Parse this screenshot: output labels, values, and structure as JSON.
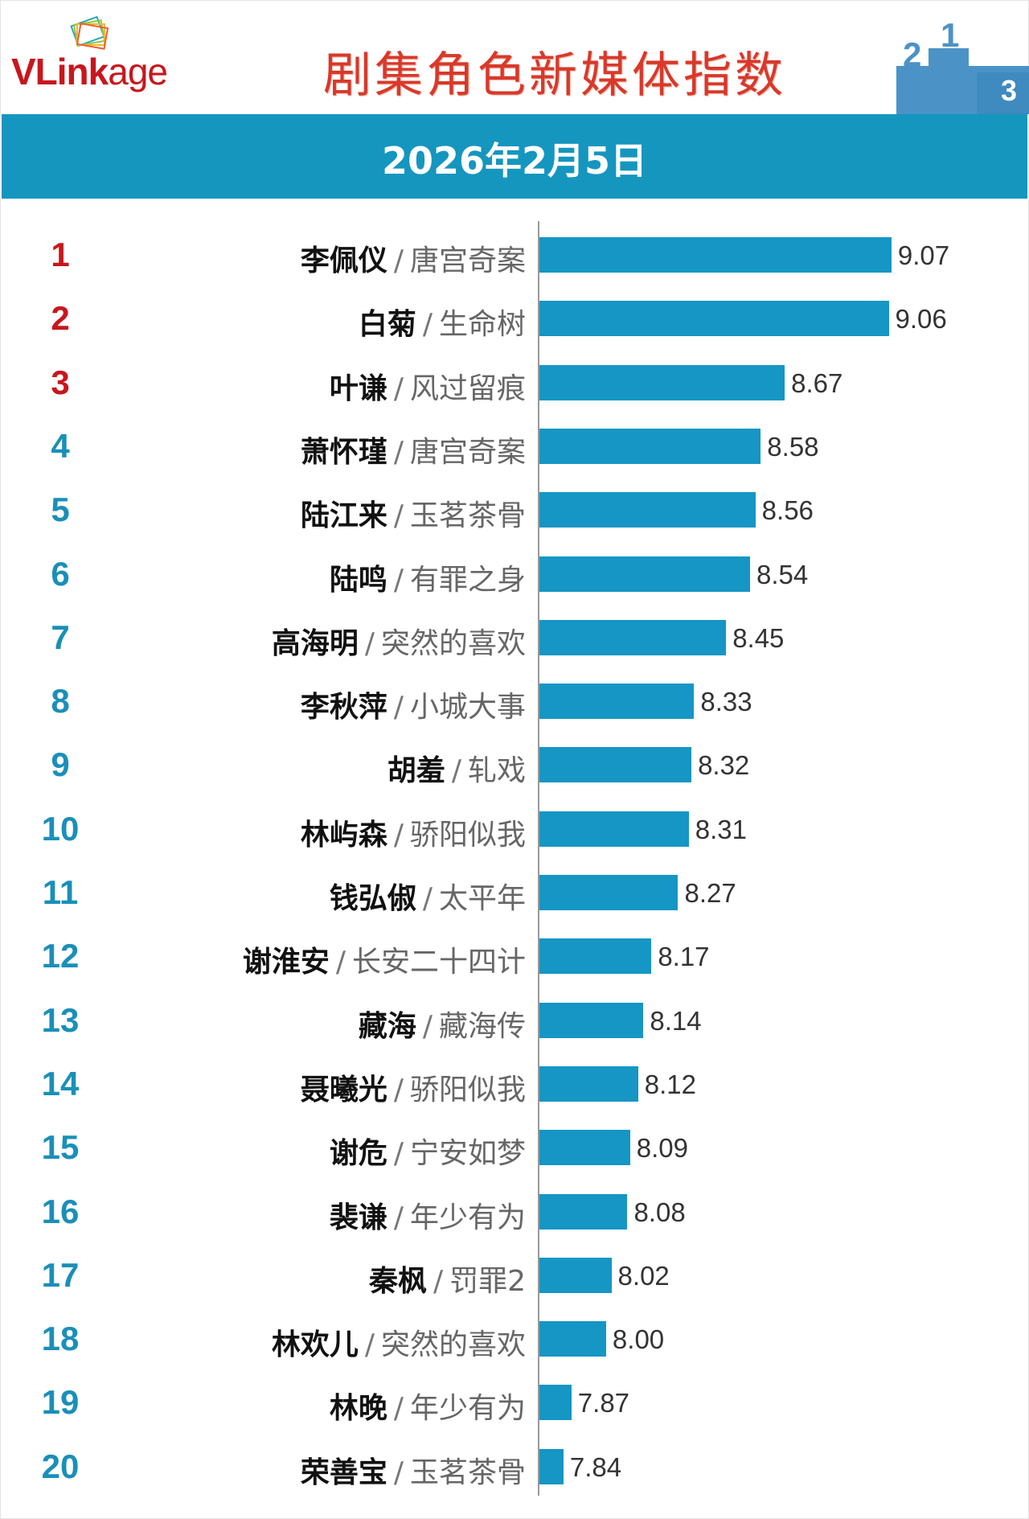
{
  "header": {
    "logo": "VLinkage",
    "title": "剧集角色新媒体指数",
    "date": "2026年2月5日"
  },
  "colors": {
    "bar": "#1596c4",
    "title": "#d8392b",
    "top_rank": "#c8161d",
    "rank": "#1a8fb8",
    "band": "#1596bf"
  },
  "chart_data": {
    "type": "bar",
    "orientation": "horizontal",
    "title": "剧集角色新媒体指数",
    "subtitle": "2026年2月5日",
    "xlim": [
      7.75,
      9.3
    ],
    "grid": false,
    "rows": [
      {
        "rank": "1",
        "name": "李佩仪",
        "show": "唐宫奇案",
        "value": 9.07
      },
      {
        "rank": "2",
        "name": "白菊",
        "show": "生命树",
        "value": 9.06
      },
      {
        "rank": "3",
        "name": "叶谦",
        "show": "风过留痕",
        "value": 8.67
      },
      {
        "rank": "4",
        "name": "萧怀瑾",
        "show": "唐宫奇案",
        "value": 8.58
      },
      {
        "rank": "5",
        "name": "陆江来",
        "show": "玉茗茶骨",
        "value": 8.56
      },
      {
        "rank": "6",
        "name": "陆鸣",
        "show": "有罪之身",
        "value": 8.54
      },
      {
        "rank": "7",
        "name": "高海明",
        "show": "突然的喜欢",
        "value": 8.45
      },
      {
        "rank": "8",
        "name": "李秋萍",
        "show": "小城大事",
        "value": 8.33
      },
      {
        "rank": "9",
        "name": "胡羞",
        "show": "轧戏",
        "value": 8.32
      },
      {
        "rank": "10",
        "name": "林屿森",
        "show": "骄阳似我",
        "value": 8.31
      },
      {
        "rank": "11",
        "name": "钱弘俶",
        "show": "太平年",
        "value": 8.27
      },
      {
        "rank": "12",
        "name": "谢淮安",
        "show": "长安二十四计",
        "value": 8.17
      },
      {
        "rank": "13",
        "name": "藏海",
        "show": "藏海传",
        "value": 8.14
      },
      {
        "rank": "14",
        "name": "聂曦光",
        "show": "骄阳似我",
        "value": 8.12
      },
      {
        "rank": "15",
        "name": "谢危",
        "show": "宁安如梦",
        "value": 8.09
      },
      {
        "rank": "16",
        "name": "裴谦",
        "show": "年少有为",
        "value": 8.08
      },
      {
        "rank": "17",
        "name": "秦枫",
        "show": "罚罪2",
        "value": 8.02
      },
      {
        "rank": "18",
        "name": "林欢儿",
        "show": "突然的喜欢",
        "value": 8.0
      },
      {
        "rank": "19",
        "name": "林晚",
        "show": "年少有为",
        "value": 7.87
      },
      {
        "rank": "20",
        "name": "荣善宝",
        "show": "玉茗茶骨",
        "value": 7.84
      }
    ]
  }
}
